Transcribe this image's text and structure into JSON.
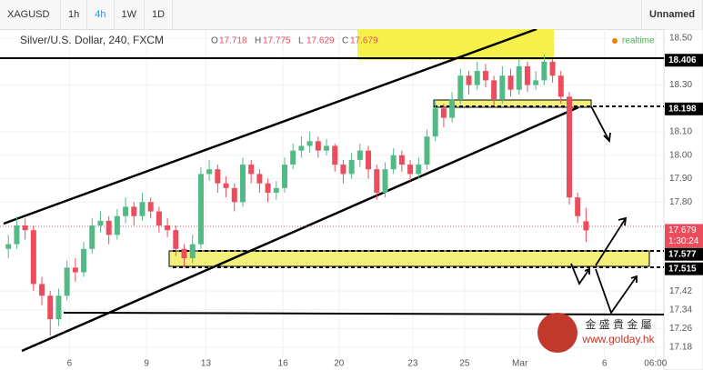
{
  "toolbar": {
    "symbol": "XAGUSD",
    "intervals": [
      "1h",
      "4h",
      "1W",
      "1D"
    ],
    "layout_name": "Unnamed"
  },
  "chart_data": {
    "type": "candlestick",
    "title": "Silver/U.S. Dollar, 240, FXCM",
    "ohlc_legend": [
      {
        "key": "O",
        "value": 17.718
      },
      {
        "key": "H",
        "value": 17.775
      },
      {
        "key": "L",
        "value": 17.629
      },
      {
        "key": "C",
        "value": 17.679
      }
    ],
    "status": "realtime",
    "x": [
      1,
      2,
      3,
      4,
      5,
      6,
      7,
      8,
      9,
      10,
      11,
      12,
      13,
      14,
      15,
      16,
      17,
      18,
      19,
      20,
      21,
      22,
      23,
      24,
      25,
      26,
      27,
      28,
      29,
      30,
      31,
      32,
      33,
      34,
      35,
      36,
      37,
      38,
      39,
      40,
      41,
      42,
      43,
      44,
      45,
      46,
      47,
      48,
      49,
      50,
      51,
      52,
      53,
      54,
      55,
      56,
      57,
      58,
      59,
      60,
      61,
      62,
      63,
      64,
      65,
      66,
      67,
      68,
      69,
      70
    ],
    "open": [
      17.6,
      17.62,
      17.7,
      17.68,
      17.45,
      17.4,
      17.3,
      17.4,
      17.52,
      17.5,
      17.6,
      17.7,
      17.72,
      17.66,
      17.74,
      17.78,
      17.74,
      17.8,
      17.76,
      17.7,
      17.68,
      17.6,
      17.56,
      17.62,
      17.92,
      17.94,
      17.88,
      17.86,
      17.8,
      17.96,
      17.92,
      17.88,
      17.84,
      17.86,
      17.96,
      18.02,
      18.04,
      18.06,
      18.02,
      18.04,
      17.96,
      17.92,
      17.98,
      18.02,
      17.94,
      17.84,
      17.94,
      18.0,
      17.96,
      17.92,
      17.96,
      18.08,
      18.2,
      18.16,
      18.24,
      18.34,
      18.3,
      18.36,
      18.32,
      18.24,
      18.34,
      18.28,
      18.38,
      18.3,
      18.32,
      18.4,
      18.34,
      18.25,
      17.82,
      17.718
    ],
    "high": [
      17.66,
      17.74,
      17.73,
      17.7,
      17.48,
      17.42,
      17.43,
      17.55,
      17.56,
      17.63,
      17.73,
      17.76,
      17.74,
      17.77,
      17.82,
      17.8,
      17.84,
      17.82,
      17.78,
      17.73,
      17.7,
      17.62,
      17.66,
      17.95,
      17.98,
      17.96,
      17.91,
      17.88,
      17.99,
      17.98,
      17.94,
      17.9,
      17.89,
      17.99,
      18.05,
      18.08,
      18.1,
      18.08,
      18.07,
      18.05,
      17.98,
      18.01,
      18.05,
      18.04,
      17.96,
      17.97,
      18.03,
      18.02,
      17.98,
      17.99,
      18.11,
      18.24,
      18.22,
      18.27,
      18.37,
      18.36,
      18.4,
      18.39,
      18.34,
      18.38,
      18.37,
      18.41,
      18.4,
      18.36,
      18.43,
      18.41,
      18.36,
      18.27,
      17.84,
      17.775
    ],
    "low": [
      17.56,
      17.6,
      17.64,
      17.42,
      17.36,
      17.23,
      17.27,
      17.38,
      17.46,
      17.48,
      17.58,
      17.67,
      17.62,
      17.64,
      17.71,
      17.7,
      17.72,
      17.73,
      17.67,
      17.65,
      17.57,
      17.52,
      17.54,
      17.6,
      17.89,
      17.84,
      17.82,
      17.76,
      17.78,
      17.88,
      17.84,
      17.8,
      17.81,
      17.84,
      17.94,
      17.99,
      18.01,
      17.99,
      18.0,
      17.93,
      17.88,
      17.9,
      17.95,
      17.9,
      17.81,
      17.82,
      17.92,
      17.93,
      17.89,
      17.9,
      17.94,
      18.06,
      18.12,
      18.14,
      18.22,
      18.26,
      18.28,
      18.29,
      18.21,
      18.22,
      18.25,
      18.26,
      18.27,
      18.28,
      18.3,
      18.31,
      18.22,
      17.79,
      17.71,
      17.629
    ],
    "close": [
      17.62,
      17.7,
      17.68,
      17.45,
      17.4,
      17.3,
      17.4,
      17.52,
      17.5,
      17.6,
      17.7,
      17.72,
      17.66,
      17.74,
      17.78,
      17.74,
      17.8,
      17.76,
      17.7,
      17.68,
      17.6,
      17.56,
      17.62,
      17.92,
      17.94,
      17.88,
      17.86,
      17.8,
      17.96,
      17.92,
      17.88,
      17.84,
      17.86,
      17.96,
      18.02,
      18.04,
      18.06,
      18.02,
      18.04,
      17.96,
      17.92,
      17.98,
      18.02,
      17.94,
      17.84,
      17.94,
      18.0,
      17.96,
      17.92,
      17.96,
      18.08,
      18.2,
      18.16,
      18.24,
      18.34,
      18.3,
      18.36,
      18.32,
      18.24,
      18.34,
      18.28,
      18.38,
      18.3,
      18.32,
      18.4,
      18.34,
      18.25,
      17.82,
      17.74,
      17.679
    ],
    "up_color": "#53b987",
    "down_color": "#eb4d5c",
    "xlim": [
      0,
      79.3
    ],
    "xticks": [
      {
        "value": 8.3,
        "label": "6"
      },
      {
        "value": 17.5,
        "label": "9"
      },
      {
        "value": 24.6,
        "label": "13"
      },
      {
        "value": 33.8,
        "label": "16"
      },
      {
        "value": 40.5,
        "label": "20"
      },
      {
        "value": 49.3,
        "label": "23"
      },
      {
        "value": 55.5,
        "label": "25"
      },
      {
        "value": 62.1,
        "label": "Mar"
      },
      {
        "value": 72.2,
        "label": "6"
      },
      {
        "value": 78.3,
        "label": "06:00"
      }
    ],
    "ylim": [
      17.137,
      18.539
    ],
    "yticks": [
      {
        "value": 18.5,
        "label": "18.50"
      },
      {
        "value": 18.3,
        "label": "18.30"
      },
      {
        "value": 18.1,
        "label": "18.10"
      },
      {
        "value": 18.0,
        "label": "18.00"
      },
      {
        "value": 17.9,
        "label": "17.90"
      },
      {
        "value": 17.8,
        "label": "17.80"
      },
      {
        "value": 17.42,
        "label": "17.42"
      },
      {
        "value": 17.34,
        "label": "17.34"
      },
      {
        "value": 17.26,
        "label": "17.26"
      },
      {
        "value": 17.18,
        "label": "17.18"
      }
    ],
    "grid": true,
    "levels": [
      18.406,
      18.198,
      17.577,
      17.515
    ],
    "last_price": 17.679,
    "countdown": "1:30:24",
    "watermark": {
      "name": "金 盛 貴 金 屬",
      "url": "www.golday.hk"
    }
  }
}
